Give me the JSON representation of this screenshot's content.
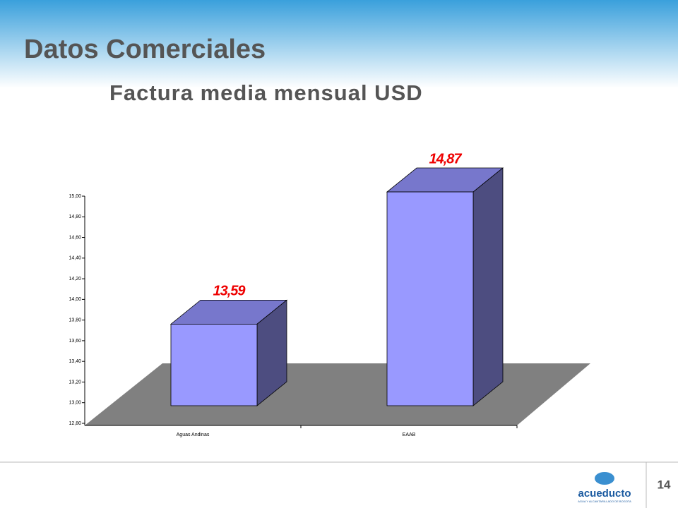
{
  "slide": {
    "title": "Datos Comerciales",
    "page_number": "14",
    "logo": "acueducto",
    "logo_tagline": "AGUA Y ALCANTARILLADO DE BOGOTA"
  },
  "chart_data": {
    "type": "bar3d",
    "title": "Factura media mensual USD",
    "categories": [
      "Aguas Andinas",
      "EAAB"
    ],
    "values": [
      13.59,
      14.87
    ],
    "value_labels": [
      "13,59",
      "14,87"
    ],
    "color": "#9999ff",
    "ylim": [
      12.8,
      15.0
    ],
    "yticks": [
      {
        "value": 12.8,
        "label": "12,80"
      },
      {
        "value": 13.0,
        "label": "13,00"
      },
      {
        "value": 13.2,
        "label": "13,20"
      },
      {
        "value": 13.4,
        "label": "13,40"
      },
      {
        "value": 13.6,
        "label": "13,60"
      },
      {
        "value": 13.8,
        "label": "13,80"
      },
      {
        "value": 14.0,
        "label": "14,00"
      },
      {
        "value": 14.2,
        "label": "14,20"
      },
      {
        "value": 14.4,
        "label": "14,40"
      },
      {
        "value": 14.6,
        "label": "14,60"
      },
      {
        "value": 14.8,
        "label": "14,80"
      },
      {
        "value": 15.0,
        "label": "15,00"
      }
    ],
    "grid": false
  }
}
